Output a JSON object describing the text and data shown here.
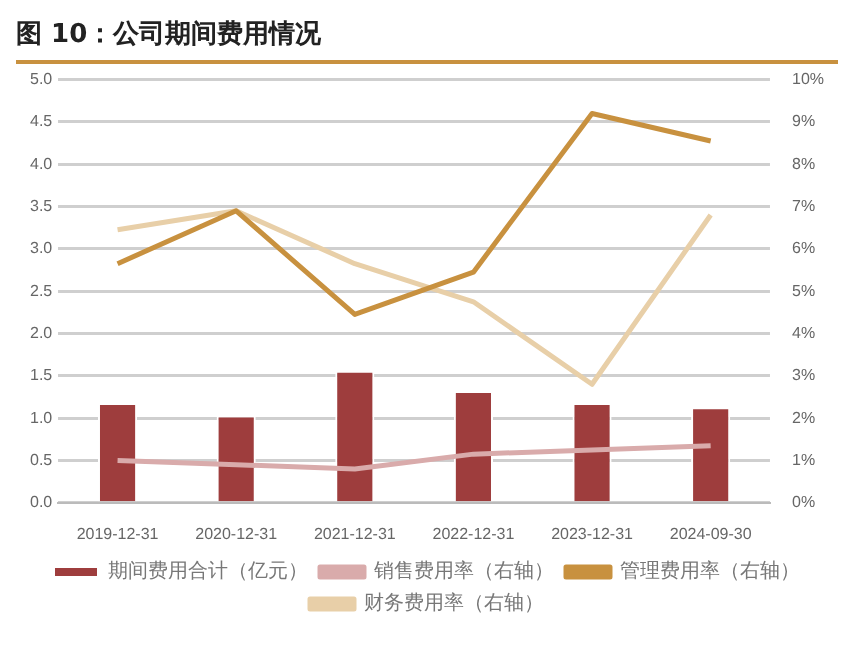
{
  "chart_data": {
    "type": "bar",
    "title": "图 10：公司期间费用情况",
    "categories": [
      "2019-12-31",
      "2020-12-31",
      "2021-12-31",
      "2022-12-31",
      "2023-12-31",
      "2024-09-30"
    ],
    "series": [
      {
        "name": "期间费用合计（亿元）",
        "color": "#9e3d3d",
        "values": [
          1.18,
          1.03,
          1.56,
          1.32,
          1.18,
          1.13
        ]
      },
      {
        "name": "销售费用率（右轴）",
        "type": "line",
        "axis": "y2",
        "color": "#d9abab",
        "values": [
          1.0,
          0.9,
          0.8,
          1.15,
          1.25,
          1.35
        ]
      },
      {
        "name": "管理费用率（右轴）",
        "type": "line",
        "axis": "y2",
        "color": "#c8913f",
        "values": [
          5.65,
          6.9,
          4.45,
          5.45,
          9.2,
          8.55
        ]
      },
      {
        "name": "财务费用率（右轴）",
        "type": "line",
        "axis": "y2",
        "color": "#e8cfa8",
        "values": [
          6.45,
          6.9,
          5.65,
          4.75,
          2.8,
          6.8
        ]
      }
    ],
    "ylim": [
      0,
      5
    ],
    "yticks": [
      {
        "value": 0,
        "label": "0.0"
      },
      0.5,
      {
        "value": 1,
        "label": "1.0"
      },
      1.5,
      {
        "value": 2,
        "label": "2.0"
      },
      2.5,
      {
        "value": 3,
        "label": "3.0"
      },
      3.5,
      {
        "value": 4,
        "label": "4.0"
      },
      4.5,
      {
        "value": 5,
        "label": "5.0"
      }
    ],
    "y2lim": [
      0,
      10
    ],
    "y2ticks": [
      {
        "value": 0,
        "label": "0%"
      },
      {
        "value": 1,
        "label": "1%"
      },
      {
        "value": 2,
        "label": "2%"
      },
      {
        "value": 3,
        "label": "3%"
      },
      {
        "value": 4,
        "label": "4%"
      },
      {
        "value": 5,
        "label": "5%"
      },
      {
        "value": 6,
        "label": "6%"
      },
      {
        "value": 7,
        "label": "7%"
      },
      {
        "value": 8,
        "label": "8%"
      },
      {
        "value": 9,
        "label": "9%"
      },
      {
        "value": 10,
        "label": "10%"
      }
    ],
    "grid": "y",
    "legend": "bottom",
    "marker": "none"
  }
}
